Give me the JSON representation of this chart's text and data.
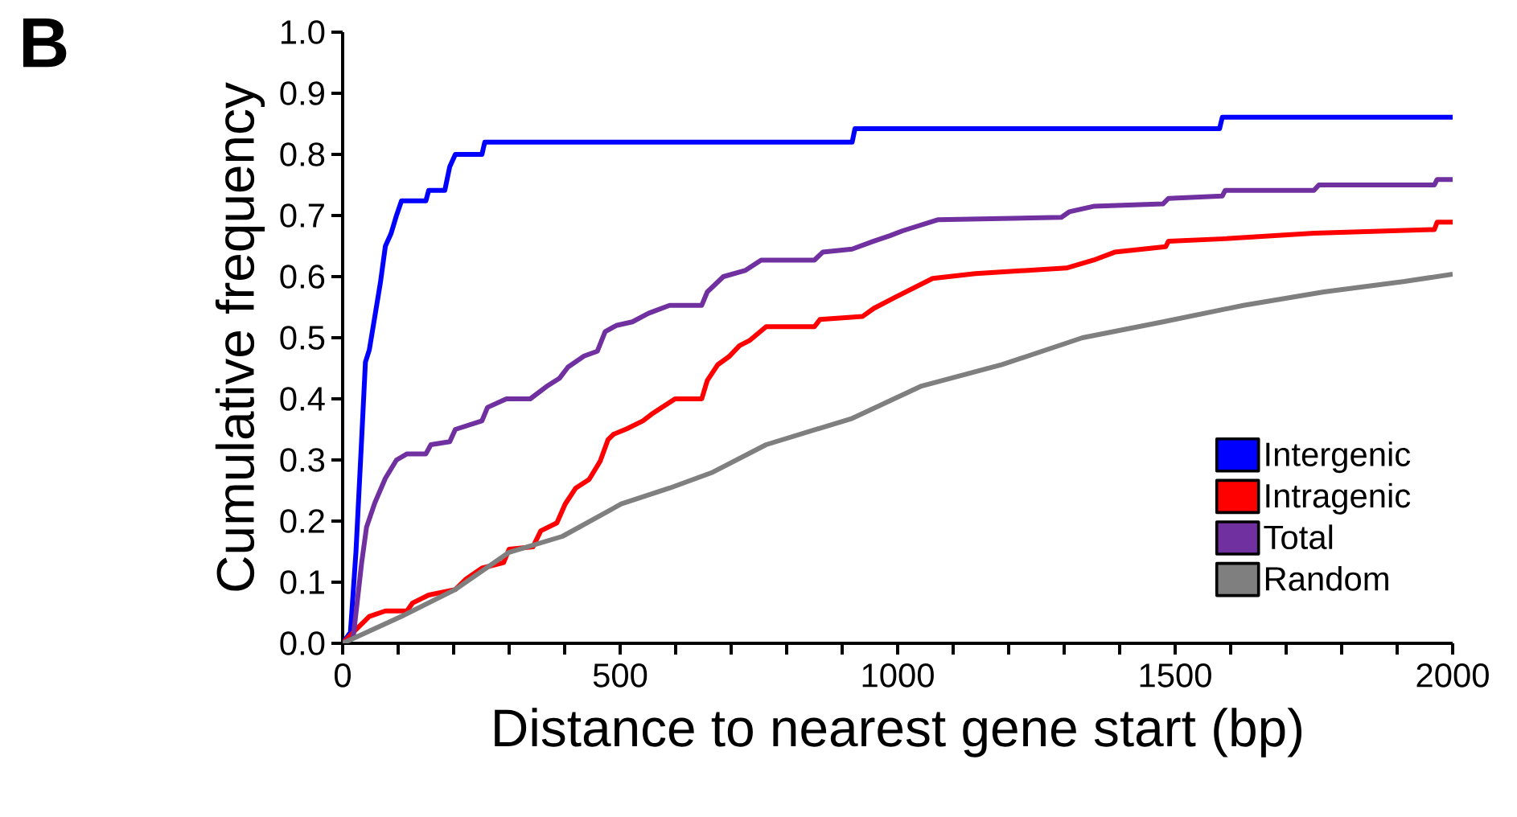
{
  "chart_data": {
    "type": "line",
    "xlabel": "Distance to nearest gene start (bp)",
    "ylabel": "Cumulative frequency",
    "annotations": [
      "B"
    ],
    "xlim": [
      0,
      2000
    ],
    "ylim": [
      0,
      1
    ],
    "xticks": [
      0,
      {
        "value": 100,
        "label": null
      },
      {
        "value": 200,
        "label": null
      },
      {
        "value": 300,
        "label": null
      },
      {
        "value": 400,
        "label": null
      },
      500,
      {
        "value": 600,
        "label": null
      },
      {
        "value": 700,
        "label": null
      },
      {
        "value": 800,
        "label": null
      },
      {
        "value": 900,
        "label": null
      },
      1000,
      {
        "value": 1100,
        "label": null
      },
      {
        "value": 1200,
        "label": null
      },
      {
        "value": 1300,
        "label": null
      },
      {
        "value": 1400,
        "label": null
      },
      1500,
      {
        "value": 1600,
        "label": null
      },
      {
        "value": 1700,
        "label": null
      },
      {
        "value": 1800,
        "label": null
      },
      {
        "value": 1900,
        "label": null
      },
      2000
    ],
    "yticks": [
      {
        "value": 0,
        "label": "0.0"
      },
      {
        "value": 0.1,
        "label": "0.1"
      },
      {
        "value": 0.2,
        "label": "0.2"
      },
      {
        "value": 0.3,
        "label": "0.3"
      },
      {
        "value": 0.4,
        "label": "0.4"
      },
      {
        "value": 0.5,
        "label": "0.5"
      },
      {
        "value": 0.6,
        "label": "0.6"
      },
      {
        "value": 0.7,
        "label": "0.7"
      },
      {
        "value": 0.8,
        "label": "0.8"
      },
      {
        "value": 0.9,
        "label": "0.9"
      },
      {
        "value": 1,
        "label": "1.0"
      }
    ],
    "legend": "bottom right",
    "series": [
      {
        "name": "Intergenic",
        "color": "#0000ff",
        "x": [
          0,
          14,
          24,
          34,
          41,
          48,
          58,
          68,
          77,
          87,
          97,
          106,
          150,
          155,
          184,
          193,
          203,
          251,
          256,
          918,
          923,
          1580,
          1585,
          2000
        ],
        "values": [
          0,
          0.018,
          0.15,
          0.33,
          0.46,
          0.48,
          0.535,
          0.59,
          0.65,
          0.67,
          0.7,
          0.724,
          0.724,
          0.741,
          0.741,
          0.78,
          0.8,
          0.8,
          0.82,
          0.82,
          0.842,
          0.842,
          0.861,
          0.861
        ]
      },
      {
        "name": "Intragenic",
        "color": "#ff0000",
        "x": [
          0,
          19,
          48,
          77,
          116,
          126,
          155,
          203,
          222,
          251,
          290,
          300,
          343,
          357,
          386,
          401,
          420,
          444,
          464,
          478,
          488,
          512,
          541,
          560,
          599,
          647,
          657,
          676,
          696,
          715,
          734,
          763,
          850,
          860,
          937,
          957,
          995,
          1063,
          1140,
          1304,
          1353,
          1391,
          1483,
          1488,
          1590,
          1750,
          1967,
          1972,
          2000
        ],
        "values": [
          0,
          0.018,
          0.044,
          0.053,
          0.053,
          0.066,
          0.079,
          0.088,
          0.105,
          0.123,
          0.132,
          0.154,
          0.158,
          0.184,
          0.197,
          0.228,
          0.254,
          0.268,
          0.298,
          0.333,
          0.342,
          0.351,
          0.364,
          0.377,
          0.4,
          0.4,
          0.43,
          0.456,
          0.469,
          0.487,
          0.496,
          0.518,
          0.518,
          0.53,
          0.535,
          0.548,
          0.566,
          0.597,
          0.605,
          0.614,
          0.627,
          0.64,
          0.649,
          0.658,
          0.662,
          0.671,
          0.677,
          0.689,
          0.689
        ]
      },
      {
        "name": "Total",
        "color": "#7030a0",
        "x": [
          0,
          19,
          34,
          43,
          58,
          77,
          97,
          116,
          150,
          159,
          193,
          203,
          251,
          261,
          295,
          338,
          367,
          391,
          406,
          435,
          459,
          473,
          493,
          522,
          551,
          589,
          647,
          657,
          686,
          725,
          754,
          850,
          865,
          918,
          957,
          986,
          1009,
          1072,
          1295,
          1309,
          1353,
          1478,
          1488,
          1585,
          1590,
          1750,
          1759,
          1967,
          1972,
          2000
        ],
        "values": [
          0,
          0.009,
          0.13,
          0.19,
          0.23,
          0.27,
          0.3,
          0.31,
          0.31,
          0.325,
          0.33,
          0.35,
          0.364,
          0.386,
          0.4,
          0.4,
          0.42,
          0.434,
          0.452,
          0.47,
          0.478,
          0.51,
          0.52,
          0.526,
          0.54,
          0.553,
          0.553,
          0.575,
          0.6,
          0.61,
          0.627,
          0.627,
          0.64,
          0.645,
          0.658,
          0.667,
          0.675,
          0.693,
          0.697,
          0.706,
          0.715,
          0.719,
          0.728,
          0.732,
          0.741,
          0.741,
          0.75,
          0.75,
          0.759,
          0.759
        ]
      },
      {
        "name": "Random",
        "color": "#7f7f7f",
        "x": [
          0,
          106,
          203,
          300,
          396,
          502,
          589,
          667,
          763,
          918,
          1043,
          1188,
          1333,
          1478,
          1623,
          1768,
          1913,
          2000
        ],
        "values": [
          0,
          0.044,
          0.088,
          0.149,
          0.175,
          0.228,
          0.254,
          0.28,
          0.325,
          0.368,
          0.421,
          0.456,
          0.5,
          0.526,
          0.553,
          0.575,
          0.592,
          0.604
        ]
      }
    ]
  }
}
